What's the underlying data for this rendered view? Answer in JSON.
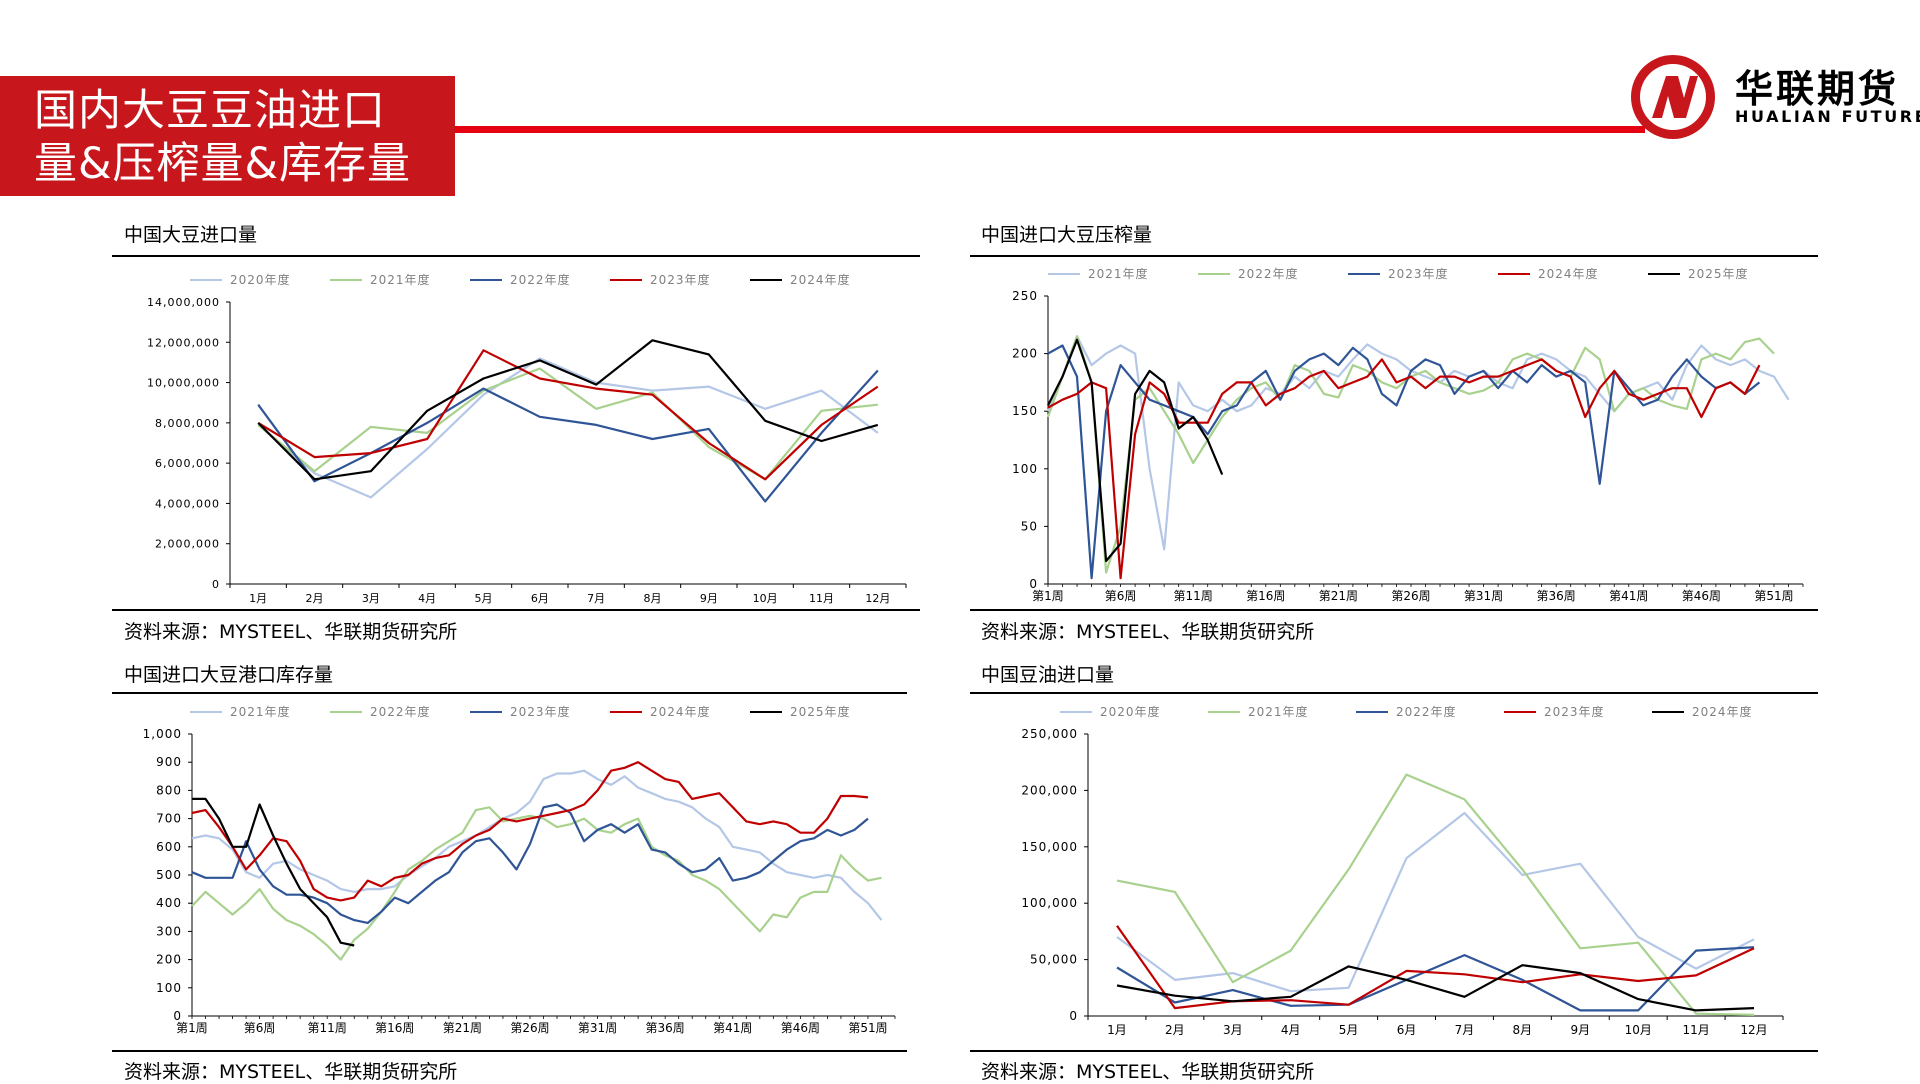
{
  "header": {
    "title_line1": "国内大豆豆油进口",
    "title_line2": "量&压榨量&库存量",
    "logo_cn": "华联期货",
    "logo_en": "HUALIAN FUTURES",
    "brand_color": "#c8161d"
  },
  "panels": [
    {
      "title": "中国大豆进口量",
      "source": "资料来源：MYSTEEL、华联期货研究所"
    },
    {
      "title": "中国进口大豆压榨量",
      "source": "资料来源：MYSTEEL、华联期货研究所"
    },
    {
      "title": "中国进口大豆港口库存量",
      "source": "资料来源：MYSTEEL、华联期货研究所"
    },
    {
      "title": "中国豆油进口量",
      "source": "资料来源：MYSTEEL、华联期货研究所"
    }
  ],
  "chart_data": [
    {
      "type": "line",
      "ylim": [
        0,
        14000000
      ],
      "yticks": [
        "0",
        "2,000,000",
        "4,000,000",
        "6,000,000",
        "8,000,000",
        "10,000,000",
        "12,000,000",
        "14,000,000"
      ],
      "categories": [
        "1月",
        "2月",
        "3月",
        "4月",
        "5月",
        "6月",
        "7月",
        "8月",
        "9月",
        "10月",
        "11月",
        "12月"
      ],
      "series": [
        {
          "name": "2020年度",
          "color": "#b4c7e7",
          "values": [
            7900000,
            5500000,
            4300000,
            6700000,
            9400000,
            11200000,
            10000000,
            9600000,
            9800000,
            8700000,
            9600000,
            7500000
          ]
        },
        {
          "name": "2021年度",
          "color": "#a9d18e",
          "values": [
            7900000,
            5600000,
            7800000,
            7500000,
            9600000,
            10700000,
            8700000,
            9500000,
            6800000,
            5200000,
            8600000,
            8900000
          ]
        },
        {
          "name": "2022年度",
          "color": "#2f5597",
          "values": [
            8900000,
            5100000,
            6500000,
            8000000,
            9700000,
            8300000,
            7900000,
            7200000,
            7700000,
            4100000,
            7500000,
            10600000
          ]
        },
        {
          "name": "2023年度",
          "color": "#c00000",
          "values": [
            8000000,
            6300000,
            6500000,
            7200000,
            11600000,
            10200000,
            9700000,
            9400000,
            7000000,
            5200000,
            7900000,
            9800000
          ]
        },
        {
          "name": "2024年度",
          "color": "#000000",
          "values": [
            8000000,
            5200000,
            5600000,
            8600000,
            10200000,
            11100000,
            9900000,
            12100000,
            11400000,
            8100000,
            7100000,
            7900000
          ]
        }
      ]
    },
    {
      "type": "line",
      "ylim": [
        0,
        250
      ],
      "yticks": [
        "0",
        "50",
        "100",
        "150",
        "200",
        "250"
      ],
      "x_range": [
        1,
        53
      ],
      "xticks": [
        {
          "week": 1,
          "label": "第1周"
        },
        {
          "week": 6,
          "label": "第6周"
        },
        {
          "week": 11,
          "label": "第11周"
        },
        {
          "week": 16,
          "label": "第16周"
        },
        {
          "week": 21,
          "label": "第21周"
        },
        {
          "week": 26,
          "label": "第26周"
        },
        {
          "week": 31,
          "label": "第31周"
        },
        {
          "week": 36,
          "label": "第36周"
        },
        {
          "week": 41,
          "label": "第41周"
        },
        {
          "week": 46,
          "label": "第46周"
        },
        {
          "week": 51,
          "label": "第51周"
        }
      ],
      "series": [
        {
          "name": "2021年度",
          "color": "#b4c7e7",
          "values": [
            150,
            180,
            215,
            190,
            200,
            207,
            200,
            100,
            30,
            175,
            155,
            150,
            160,
            150,
            155,
            170,
            165,
            180,
            170,
            185,
            180,
            195,
            208,
            200,
            195,
            185,
            180,
            175,
            185,
            180,
            185,
            175,
            170,
            195,
            200,
            195,
            185,
            180,
            165,
            150,
            165,
            170,
            175,
            160,
            190,
            207,
            195,
            190,
            195,
            185,
            180,
            160
          ]
        },
        {
          "name": "2022年度",
          "color": "#a9d18e",
          "values": [
            145,
            180,
            215,
            175,
            10,
            50,
            160,
            170,
            150,
            130,
            105,
            125,
            145,
            160,
            170,
            175,
            160,
            190,
            185,
            165,
            162,
            190,
            185,
            175,
            170,
            180,
            185,
            175,
            170,
            165,
            168,
            175,
            195,
            200,
            195,
            185,
            180,
            205,
            195,
            150,
            165,
            170,
            160,
            155,
            152,
            195,
            200,
            195,
            210,
            213,
            200
          ]
        },
        {
          "name": "2023年度",
          "color": "#2f5597",
          "values": [
            200,
            207,
            180,
            5,
            150,
            190,
            175,
            160,
            155,
            150,
            145,
            130,
            150,
            155,
            175,
            185,
            160,
            185,
            195,
            200,
            190,
            205,
            195,
            165,
            155,
            185,
            195,
            190,
            165,
            180,
            185,
            170,
            185,
            175,
            190,
            180,
            185,
            175,
            87,
            185,
            170,
            155,
            160,
            180,
            195,
            180,
            170,
            175,
            165,
            175
          ]
        },
        {
          "name": "2024年度",
          "color": "#c00000",
          "values": [
            153,
            160,
            165,
            175,
            170,
            5,
            130,
            175,
            165,
            140,
            140,
            140,
            165,
            175,
            175,
            155,
            165,
            170,
            180,
            185,
            170,
            175,
            180,
            195,
            175,
            180,
            170,
            180,
            180,
            175,
            180,
            180,
            185,
            190,
            195,
            185,
            180,
            145,
            170,
            185,
            165,
            160,
            165,
            170,
            170,
            145,
            170,
            175,
            165,
            190
          ]
        },
        {
          "name": "2025年度",
          "color": "#000000",
          "values": [
            155,
            180,
            212,
            175,
            20,
            35,
            165,
            185,
            175,
            135,
            145,
            125,
            95
          ]
        }
      ]
    },
    {
      "type": "line",
      "ylim": [
        0,
        1000
      ],
      "yticks": [
        "0",
        "100",
        "200",
        "300",
        "400",
        "500",
        "600",
        "700",
        "800",
        "900",
        "1,000"
      ],
      "x_range": [
        1,
        53
      ],
      "xticks": [
        {
          "week": 1,
          "label": "第1周"
        },
        {
          "week": 6,
          "label": "第6周"
        },
        {
          "week": 11,
          "label": "第11周"
        },
        {
          "week": 16,
          "label": "第16周"
        },
        {
          "week": 21,
          "label": "第21周"
        },
        {
          "week": 26,
          "label": "第26周"
        },
        {
          "week": 31,
          "label": "第31周"
        },
        {
          "week": 36,
          "label": "第36周"
        },
        {
          "week": 41,
          "label": "第41周"
        },
        {
          "week": 46,
          "label": "第46周"
        },
        {
          "week": 51,
          "label": "第51周"
        }
      ],
      "series": [
        {
          "name": "2021年度",
          "color": "#b4c7e7",
          "values": [
            630,
            640,
            630,
            590,
            510,
            490,
            540,
            550,
            520,
            500,
            480,
            450,
            440,
            450,
            450,
            460,
            500,
            530,
            560,
            600,
            620,
            640,
            670,
            700,
            720,
            760,
            840,
            860,
            860,
            870,
            840,
            820,
            850,
            810,
            790,
            770,
            760,
            740,
            700,
            670,
            600,
            590,
            580,
            540,
            510,
            500,
            490,
            500,
            490,
            440,
            400,
            340
          ]
        },
        {
          "name": "2022年度",
          "color": "#a9d18e",
          "values": [
            390,
            440,
            400,
            360,
            400,
            450,
            380,
            340,
            320,
            290,
            250,
            200,
            270,
            310,
            370,
            440,
            520,
            550,
            590,
            620,
            650,
            730,
            740,
            690,
            700,
            710,
            700,
            670,
            680,
            700,
            660,
            650,
            680,
            700,
            600,
            570,
            550,
            500,
            480,
            450,
            400,
            350,
            300,
            360,
            350,
            420,
            440,
            440,
            570,
            520,
            480,
            490
          ]
        },
        {
          "name": "2023年度",
          "color": "#2f5597",
          "values": [
            510,
            490,
            490,
            490,
            620,
            520,
            460,
            430,
            430,
            420,
            400,
            360,
            340,
            330,
            370,
            420,
            400,
            440,
            480,
            510,
            580,
            620,
            630,
            580,
            520,
            610,
            740,
            750,
            720,
            620,
            660,
            680,
            650,
            680,
            590,
            580,
            540,
            510,
            520,
            560,
            480,
            490,
            510,
            550,
            590,
            620,
            630,
            660,
            640,
            660,
            700
          ]
        },
        {
          "name": "2024年度",
          "color": "#c00000",
          "values": [
            720,
            730,
            670,
            600,
            520,
            570,
            630,
            620,
            550,
            450,
            420,
            410,
            420,
            480,
            460,
            490,
            500,
            540,
            560,
            570,
            610,
            640,
            660,
            700,
            690,
            700,
            710,
            720,
            730,
            750,
            800,
            870,
            880,
            900,
            870,
            840,
            830,
            770,
            780,
            790,
            740,
            690,
            680,
            690,
            680,
            650,
            650,
            700,
            780,
            780,
            775
          ]
        },
        {
          "name": "2025年度",
          "color": "#000000",
          "values": [
            770,
            770,
            700,
            600,
            600,
            750,
            640,
            540,
            450,
            400,
            350,
            260,
            250
          ]
        }
      ]
    },
    {
      "type": "line",
      "ylim": [
        0,
        250000
      ],
      "yticks": [
        "0",
        "50,000",
        "100,000",
        "150,000",
        "200,000",
        "250,000"
      ],
      "categories": [
        "1月",
        "2月",
        "3月",
        "4月",
        "5月",
        "6月",
        "7月",
        "8月",
        "9月",
        "10月",
        "11月",
        "12月"
      ],
      "series": [
        {
          "name": "2020年度",
          "color": "#b4c7e7",
          "values": [
            70000,
            32000,
            38000,
            22000,
            25000,
            140000,
            180000,
            125000,
            135000,
            70000,
            42000,
            68000
          ]
        },
        {
          "name": "2021年度",
          "color": "#a9d18e",
          "values": [
            120000,
            110000,
            30000,
            58000,
            130000,
            214000,
            192000,
            130000,
            60000,
            65000,
            2000,
            1000
          ]
        },
        {
          "name": "2022年度",
          "color": "#2f5597",
          "values": [
            43000,
            12000,
            23000,
            9000,
            10000,
            32000,
            54000,
            32000,
            5000,
            5000,
            58000,
            61000
          ]
        },
        {
          "name": "2023年度",
          "color": "#c00000",
          "values": [
            80000,
            7000,
            13000,
            14000,
            10000,
            40000,
            37000,
            30000,
            37000,
            31000,
            36000,
            60000
          ]
        },
        {
          "name": "2024年度",
          "color": "#000000",
          "values": [
            27000,
            18000,
            13000,
            17000,
            44000,
            32000,
            17000,
            45000,
            38000,
            15000,
            5000,
            7000
          ]
        }
      ]
    }
  ]
}
